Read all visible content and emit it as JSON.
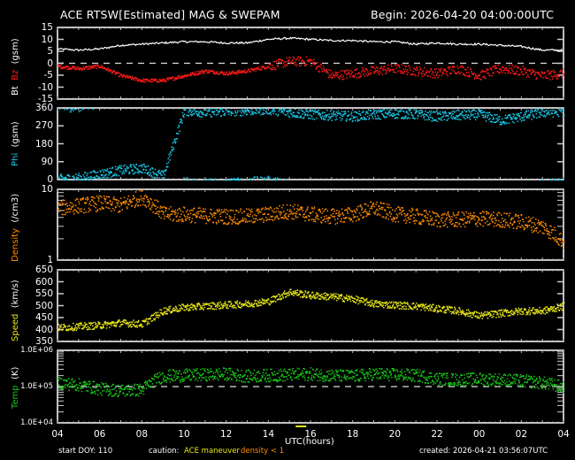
{
  "header": {
    "title": "ACE RTSW[Estimated] MAG & SWEPAM",
    "begin": "Begin: 2026-04-20 04:00:00UTC"
  },
  "footer": {
    "start_doy": "start DOY: 110",
    "caution_label": "caution:",
    "caution_maneuver": "ACE maneuver",
    "caution_density": "density < 1",
    "xlabel": "UTC(hours)",
    "created": "created: 2026-04-21 03:56:07UTC"
  },
  "colors": {
    "bt": "#ffffff",
    "bz": "#ff1a1a",
    "phi": "#19c8e6",
    "density": "#ff8c00",
    "speed": "#e6e619",
    "temp": "#19c819",
    "maneuver": "#e6e619",
    "axis": "#ffffff"
  },
  "chart_data": [
    {
      "type": "line",
      "panel": "Bt/Bz",
      "ylabel": [
        "Bt",
        "Bz",
        "(gsm)"
      ],
      "yticks": [
        "15",
        "10",
        "5",
        "0",
        "-5",
        "-10",
        "-15"
      ],
      "ylim": [
        -15,
        15
      ],
      "reference_line": 0,
      "x": [
        4,
        5,
        6,
        7,
        8,
        9,
        10,
        11,
        12,
        13,
        14,
        15,
        16,
        17,
        18,
        19,
        20,
        21,
        22,
        23,
        24,
        25,
        26,
        27,
        28
      ],
      "series": [
        {
          "name": "Bt",
          "values": [
            6,
            5.5,
            6,
            7.5,
            8,
            8.5,
            9,
            9,
            8.5,
            8.5,
            10,
            10.5,
            10,
            9.5,
            9.5,
            9,
            9,
            8,
            8.5,
            8,
            8,
            7.5,
            7,
            5.5,
            5.5
          ]
        },
        {
          "name": "Bz",
          "values": [
            -1,
            -2,
            -1,
            -5,
            -7,
            -7,
            -5,
            -3,
            -4,
            -3,
            -1,
            1,
            1,
            -5,
            -4,
            -3,
            -2,
            -3,
            -4,
            -2,
            -5,
            -2,
            -3,
            -5,
            -4
          ]
        }
      ]
    },
    {
      "type": "scatter",
      "panel": "Phi",
      "ylabel": [
        "Phi",
        "(gsm)"
      ],
      "yticks": [
        "360",
        "270",
        "180",
        "90",
        "0"
      ],
      "ylim": [
        0,
        360
      ],
      "x": [
        4,
        5,
        6,
        7,
        8,
        9,
        10,
        11,
        12,
        13,
        14,
        15,
        16,
        17,
        18,
        19,
        20,
        21,
        22,
        23,
        24,
        25,
        26,
        27,
        28
      ],
      "values": [
        5,
        10,
        30,
        50,
        60,
        20,
        350,
        340,
        345,
        350,
        355,
        340,
        330,
        325,
        320,
        330,
        335,
        330,
        320,
        325,
        330,
        300,
        320,
        340,
        345
      ]
    },
    {
      "type": "scatter",
      "panel": "Density",
      "ylabel": [
        "Density",
        "(/cm3)"
      ],
      "yticks": [
        "10",
        "1"
      ],
      "yscale": "log",
      "ylim": [
        1,
        10
      ],
      "x": [
        4,
        5,
        6,
        7,
        8,
        9,
        10,
        11,
        12,
        13,
        14,
        15,
        16,
        17,
        18,
        19,
        20,
        21,
        22,
        23,
        24,
        25,
        26,
        27,
        28
      ],
      "values": [
        5.5,
        6,
        6.5,
        6,
        8,
        4.5,
        4.5,
        4.3,
        4.2,
        4.2,
        4.5,
        5,
        4.5,
        4.2,
        4.5,
        5.5,
        4.5,
        4.2,
        3.8,
        3.8,
        3.9,
        3.8,
        3.5,
        3,
        1.8
      ]
    },
    {
      "type": "scatter",
      "panel": "Speed",
      "ylabel": [
        "Speed",
        "(km/s)"
      ],
      "yticks": [
        "650",
        "600",
        "550",
        "500",
        "450",
        "400",
        "350"
      ],
      "ylim": [
        350,
        650
      ],
      "x": [
        4,
        5,
        6,
        7,
        8,
        9,
        10,
        11,
        12,
        13,
        14,
        15,
        16,
        17,
        18,
        19,
        20,
        21,
        22,
        23,
        24,
        25,
        26,
        27,
        28
      ],
      "values": [
        410,
        415,
        420,
        430,
        425,
        480,
        495,
        500,
        505,
        510,
        520,
        560,
        545,
        540,
        530,
        510,
        505,
        500,
        490,
        480,
        460,
        470,
        480,
        480,
        500
      ]
    },
    {
      "type": "scatter",
      "panel": "Temp",
      "ylabel": [
        "Temp",
        "(K)"
      ],
      "yticks": [
        "1.0E+06",
        "1.0E+05",
        "1.0E+04"
      ],
      "yscale": "log",
      "ylim": [
        10000,
        1000000
      ],
      "reference_line": 100000,
      "x": [
        4,
        5,
        6,
        7,
        8,
        9,
        10,
        11,
        12,
        13,
        14,
        15,
        16,
        17,
        18,
        19,
        20,
        21,
        22,
        23,
        24,
        25,
        26,
        27,
        28
      ],
      "values": [
        130000,
        115000,
        90000,
        80000,
        85000,
        200000,
        210000,
        220000,
        230000,
        200000,
        210000,
        220000,
        230000,
        210000,
        200000,
        230000,
        220000,
        210000,
        170000,
        160000,
        170000,
        160000,
        150000,
        130000,
        100000
      ]
    }
  ],
  "xaxis": {
    "ticks": [
      "04",
      "06",
      "08",
      "10",
      "12",
      "14",
      "16",
      "18",
      "20",
      "22",
      "00",
      "02",
      "04"
    ],
    "label": "UTC(hours)"
  },
  "labels": {
    "bt": "Bt",
    "bz": "Bz",
    "gsm": "(gsm)",
    "phi": "Phi",
    "density": "Density",
    "density_unit": "(/cm3)",
    "speed": "Speed",
    "speed_unit": "(km/s)",
    "temp": "Temp",
    "temp_unit": "(K)"
  }
}
